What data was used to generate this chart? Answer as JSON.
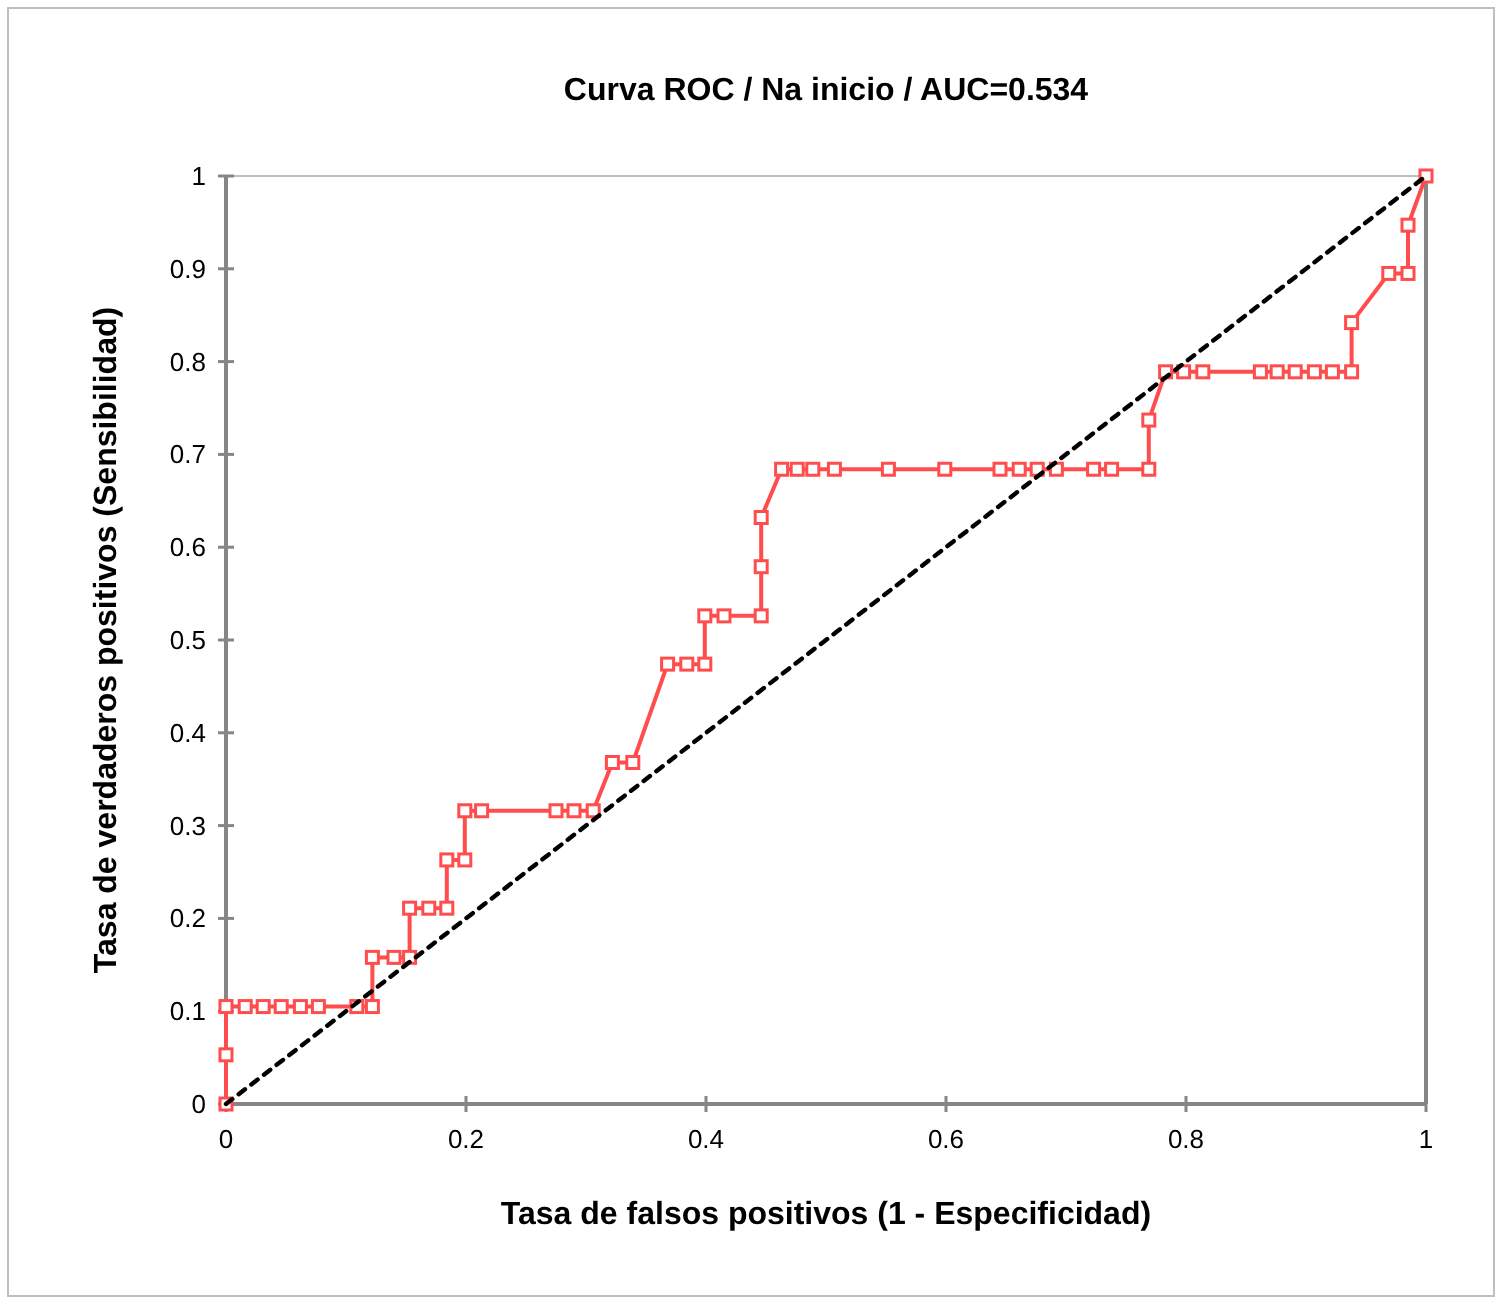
{
  "chart_data": {
    "type": "line",
    "title": "Curva ROC / Na inicio / AUC=0.534",
    "xlabel": "Tasa de falsos positivos (1 - Especificidad)",
    "ylabel": "Tasa de verdaderos positivos (Sensibilidad)",
    "xlim": [
      0,
      1
    ],
    "ylim": [
      0,
      1
    ],
    "xticks": [
      0,
      0.2,
      0.4,
      0.6,
      0.8,
      1
    ],
    "yticks": [
      0,
      0.1,
      0.2,
      0.3,
      0.4,
      0.5,
      0.6,
      0.7,
      0.8,
      0.9,
      1
    ],
    "grid": false,
    "series": [
      {
        "color": "#ff4d4d",
        "marker": "square",
        "line_style": "solid",
        "x": [
          0,
          0,
          0,
          0.016,
          0.031,
          0.046,
          0.062,
          0.077,
          0.109,
          0.122,
          0.122,
          0.14,
          0.153,
          0.153,
          0.169,
          0.184,
          0.184,
          0.199,
          0.199,
          0.213,
          0.275,
          0.29,
          0.306,
          0.322,
          0.339,
          0.368,
          0.384,
          0.399,
          0.399,
          0.415,
          0.446,
          0.446,
          0.446,
          0.463,
          0.476,
          0.489,
          0.507,
          0.552,
          0.599,
          0.645,
          0.661,
          0.676,
          0.692,
          0.723,
          0.738,
          0.769,
          0.769,
          0.783,
          0.798,
          0.814,
          0.862,
          0.876,
          0.891,
          0.907,
          0.922,
          0.938,
          0.938,
          0.969,
          0.985,
          0.985,
          1
        ],
        "values": [
          0,
          0.053,
          0.105,
          0.105,
          0.105,
          0.105,
          0.105,
          0.105,
          0.105,
          0.105,
          0.158,
          0.158,
          0.158,
          0.211,
          0.211,
          0.211,
          0.263,
          0.263,
          0.316,
          0.316,
          0.316,
          0.316,
          0.316,
          0.368,
          0.368,
          0.474,
          0.474,
          0.474,
          0.526,
          0.526,
          0.526,
          0.579,
          0.632,
          0.684,
          0.684,
          0.684,
          0.684,
          0.684,
          0.684,
          0.684,
          0.684,
          0.684,
          0.684,
          0.684,
          0.684,
          0.684,
          0.737,
          0.789,
          0.789,
          0.789,
          0.789,
          0.789,
          0.789,
          0.789,
          0.789,
          0.789,
          0.842,
          0.895,
          0.895,
          0.947,
          1
        ]
      },
      {
        "color": "#000000",
        "marker": "none",
        "line_style": "dashed",
        "x": [
          0,
          1
        ],
        "values": [
          0,
          1
        ]
      }
    ]
  }
}
